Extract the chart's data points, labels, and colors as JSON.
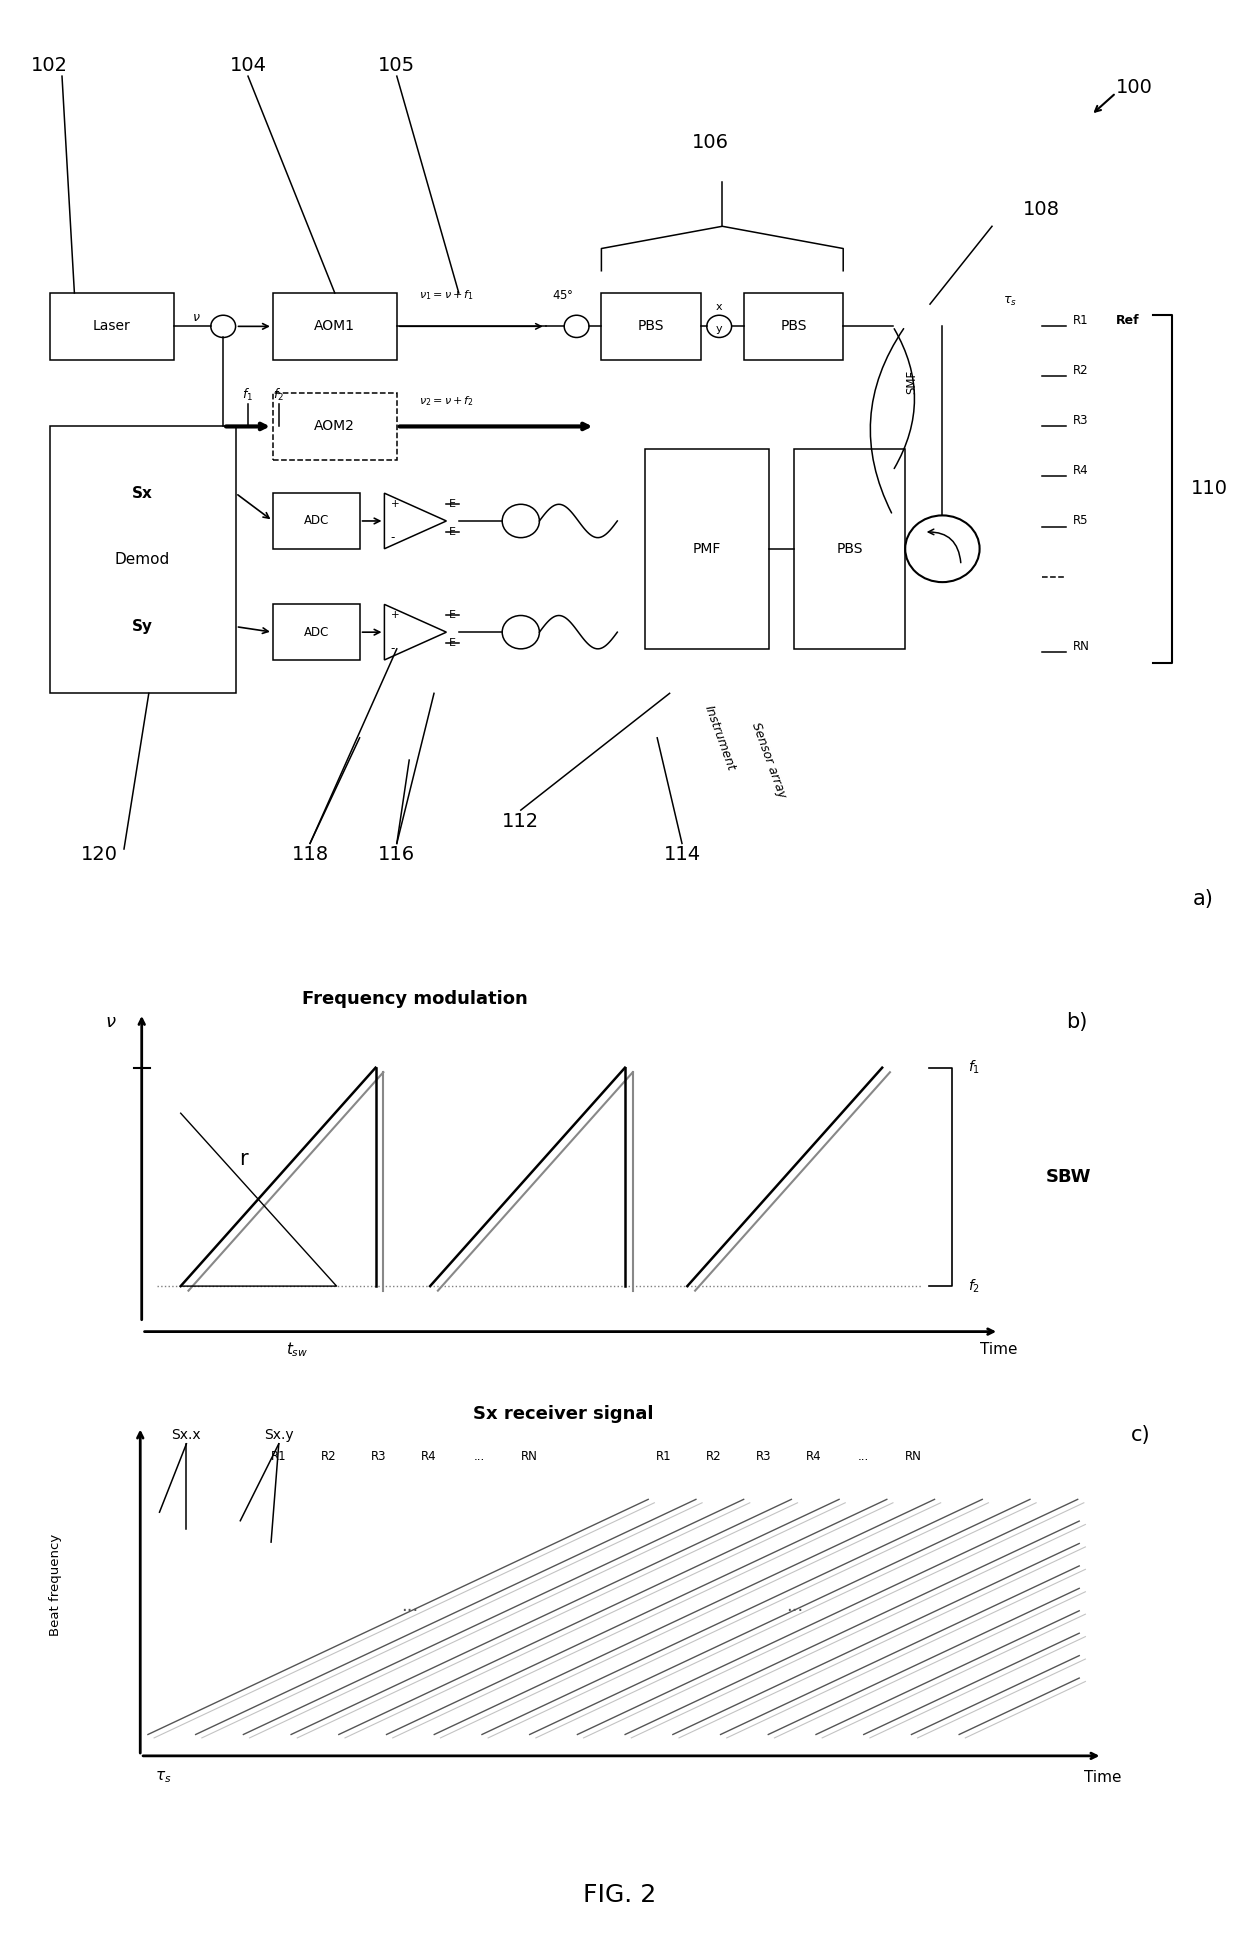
{
  "bg_color": "#ffffff",
  "fig_width": 12.4,
  "fig_height": 19.34,
  "fig_label": "FIG. 2",
  "freq_mod_title": "Frequency modulation",
  "sx_signal_title": "Sx receiver signal"
}
